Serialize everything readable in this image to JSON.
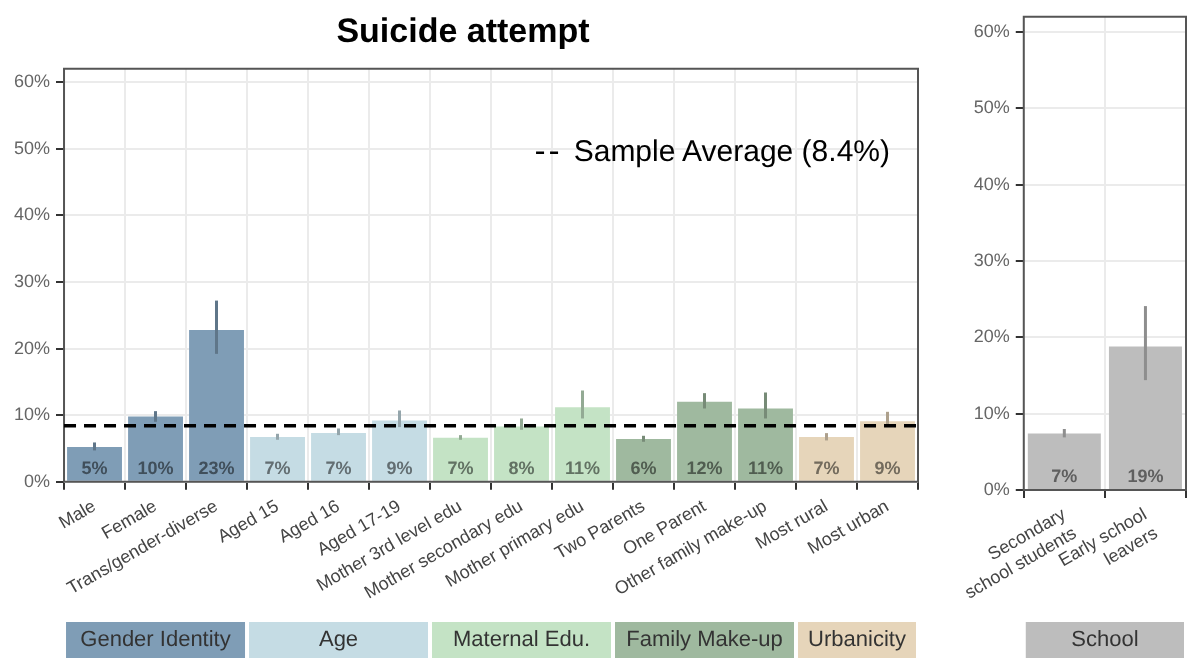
{
  "chart_data": [
    {
      "type": "bar",
      "title": "Suicide attempt",
      "categories": [
        "Male",
        "Female",
        "Trans/gender-diverse",
        "Aged 15",
        "Aged 16",
        "Aged 17-19",
        "Mother 3rd level edu",
        "Mother secondary edu",
        "Mother primary edu",
        "Two Parents",
        "One Parent",
        "Other family make-up",
        "Most rural",
        "Most urban"
      ],
      "series": [
        {
          "name": "Gender Identity",
          "color": "#7f9db6",
          "values": [
            5.2,
            9.8,
            22.8,
            null,
            null,
            null,
            null,
            null,
            null,
            null,
            null,
            null,
            null,
            null
          ],
          "errors": [
            [
              4.7,
              5.9
            ],
            [
              9.0,
              10.6
            ],
            [
              19.2,
              27.2
            ],
            null,
            null,
            null,
            null,
            null,
            null,
            null,
            null,
            null,
            null,
            null
          ],
          "value_labels": [
            "5%",
            "10%",
            "23%",
            null,
            null,
            null,
            null,
            null,
            null,
            null,
            null,
            null,
            null,
            null
          ]
        },
        {
          "name": "Age",
          "color": "#c5dce4",
          "values": [
            null,
            null,
            null,
            6.7,
            7.3,
            9.2,
            null,
            null,
            null,
            null,
            null,
            null,
            null,
            null
          ],
          "errors": [
            null,
            null,
            null,
            [
              6.3,
              7.2
            ],
            [
              7.0,
              8.0
            ],
            [
              8.2,
              10.7
            ],
            null,
            null,
            null,
            null,
            null,
            null,
            null,
            null
          ],
          "value_labels": [
            null,
            null,
            null,
            "7%",
            "7%",
            "9%",
            null,
            null,
            null,
            null,
            null,
            null,
            null,
            null
          ]
        },
        {
          "name": "Maternal Edu.",
          "color": "#c4e3c5",
          "values": [
            null,
            null,
            null,
            null,
            null,
            null,
            6.6,
            8.3,
            11.2,
            null,
            null,
            null,
            null,
            null
          ],
          "errors": [
            null,
            null,
            null,
            null,
            null,
            null,
            [
              6.3,
              7.0
            ],
            [
              7.8,
              9.5
            ],
            [
              9.5,
              13.7
            ],
            null,
            null,
            null,
            null,
            null
          ],
          "value_labels": [
            null,
            null,
            null,
            null,
            null,
            null,
            "7%",
            "8%",
            "11%",
            null,
            null,
            null,
            null,
            null
          ]
        },
        {
          "name": "Family Make-up",
          "color": "#9fb99f",
          "values": [
            null,
            null,
            null,
            null,
            null,
            null,
            null,
            null,
            null,
            6.4,
            12.0,
            11.0,
            null,
            null
          ],
          "errors": [
            null,
            null,
            null,
            null,
            null,
            null,
            null,
            null,
            null,
            [
              6.0,
              6.9
            ],
            [
              11.0,
              13.3
            ],
            [
              9.5,
              13.4
            ],
            null,
            null
          ],
          "value_labels": [
            null,
            null,
            null,
            null,
            null,
            null,
            null,
            null,
            null,
            "6%",
            "12%",
            "11%",
            null,
            null
          ]
        },
        {
          "name": "Urbanicity",
          "color": "#e6d5ba",
          "values": [
            null,
            null,
            null,
            null,
            null,
            null,
            null,
            null,
            null,
            null,
            null,
            null,
            6.7,
            9.1
          ],
          "errors": [
            null,
            null,
            null,
            null,
            null,
            null,
            null,
            null,
            null,
            null,
            null,
            null,
            [
              6.2,
              7.3
            ],
            [
              8.5,
              10.5
            ]
          ],
          "value_labels": [
            null,
            null,
            null,
            null,
            null,
            null,
            null,
            null,
            null,
            null,
            null,
            null,
            "7%",
            "9%"
          ]
        }
      ],
      "ylim": [
        0,
        62
      ],
      "yticks": [
        {
          "value": 0,
          "label": "0%"
        },
        {
          "value": 10,
          "label": "10%"
        },
        {
          "value": 20,
          "label": "20%"
        },
        {
          "value": 30,
          "label": "30%"
        },
        {
          "value": 40,
          "label": "40%"
        },
        {
          "value": 50,
          "label": "50%"
        },
        {
          "value": 60,
          "label": "60%"
        }
      ],
      "grid": true,
      "legend": "top right",
      "ref_lines": [
        {
          "axis": "y",
          "value": 8.4,
          "label": "Sample Average (8.4%)",
          "line_style": "dashed",
          "color": "#000000"
        }
      ]
    },
    {
      "type": "bar",
      "categories": [
        "Secondary school students",
        "Early school leavers"
      ],
      "series": [
        {
          "name": "School",
          "color": "#bdbdbd",
          "values": [
            7.4,
            18.8
          ],
          "errors": [
            [
              6.9,
              8.0
            ],
            [
              14.4,
              24.1
            ]
          ],
          "value_labels": [
            "7%",
            "19%"
          ]
        }
      ],
      "ylim": [
        0,
        62
      ],
      "yticks": [
        {
          "value": 0,
          "label": "0%"
        },
        {
          "value": 10,
          "label": "10%"
        },
        {
          "value": 20,
          "label": "20%"
        },
        {
          "value": 30,
          "label": "30%"
        },
        {
          "value": 40,
          "label": "40%"
        },
        {
          "value": 50,
          "label": "50%"
        },
        {
          "value": 60,
          "label": "60%"
        }
      ],
      "grid": true,
      "legend": "bottom"
    }
  ]
}
